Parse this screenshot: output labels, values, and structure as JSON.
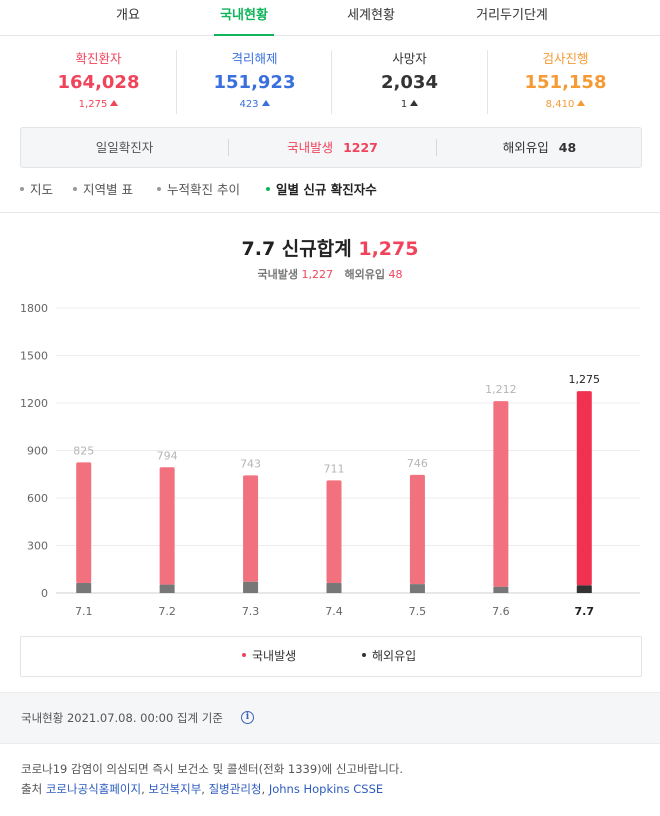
{
  "tabs": [
    {
      "label": "개요",
      "active": false
    },
    {
      "label": "국내현황",
      "active": true
    },
    {
      "label": "세계현황",
      "active": false
    },
    {
      "label": "거리두기단계",
      "active": false
    }
  ],
  "stats": [
    {
      "label": "확진환자",
      "value": "164,028",
      "change": "1,275",
      "color": "#f0445c"
    },
    {
      "label": "격리해제",
      "value": "151,923",
      "change": "423",
      "color": "#3a6fde"
    },
    {
      "label": "사망자",
      "value": "2,034",
      "change": "1",
      "color": "#333333"
    },
    {
      "label": "검사진행",
      "value": "151,158",
      "change": "8,410",
      "color": "#f59a34"
    }
  ],
  "daily_summary": {
    "title": "일일확진자",
    "domestic_label": "국내발생",
    "domestic_value": "1227",
    "overseas_label": "해외유입",
    "overseas_value": "48"
  },
  "subnav": [
    {
      "label": "지도",
      "active": false
    },
    {
      "label": "지역별 표",
      "active": false
    },
    {
      "label": "누적확진 추이",
      "active": false
    },
    {
      "label": "일별 신규 확진자수",
      "active": true
    }
  ],
  "headline": {
    "date_label": "7.7 신규합계",
    "total": "1,275",
    "domestic_label": "국내발생",
    "domestic_value": "1,227",
    "overseas_label": "해외유입",
    "overseas_value": "48"
  },
  "chart_data": {
    "type": "bar",
    "categories": [
      "7.1",
      "7.2",
      "7.3",
      "7.4",
      "7.5",
      "7.6",
      "7.7"
    ],
    "totals": [
      825,
      794,
      743,
      711,
      746,
      1212,
      1275
    ],
    "total_labels": [
      "825",
      "794",
      "743",
      "711",
      "746",
      "1,212",
      "1,275"
    ],
    "series": [
      {
        "name": "국내발생",
        "values": [
          762,
          741,
          672,
          648,
          690,
          1173,
          1227
        ]
      },
      {
        "name": "해외유입",
        "values": [
          63,
          53,
          71,
          63,
          56,
          39,
          48
        ]
      }
    ],
    "yticks": [
      0,
      300,
      600,
      900,
      1200,
      1500,
      1800
    ],
    "ylim": [
      0,
      1800
    ],
    "highlight_index": 6,
    "colors": {
      "domestic": "#f2717f",
      "domestic_highlight": "#f0314f",
      "overseas": "#777777",
      "overseas_highlight": "#333333"
    },
    "grid": true,
    "legend_position": "bottom-center"
  },
  "legend": [
    {
      "label": "국내발생",
      "color": "#f0445c"
    },
    {
      "label": "해외유입",
      "color": "#333333"
    }
  ],
  "basis": {
    "text": "국내현황 2021.07.08. 00:00 집계 기준",
    "info_icon": "i"
  },
  "notice": "코로나19 감염이 의심되면 즉시 보건소 및 콜센터(전화 1339)에 신고바랍니다.",
  "source": {
    "prefix": "출처",
    "links": [
      "코로나공식홈페이지",
      "보건복지부",
      "질병관리청",
      "Johns Hopkins CSSE"
    ]
  }
}
